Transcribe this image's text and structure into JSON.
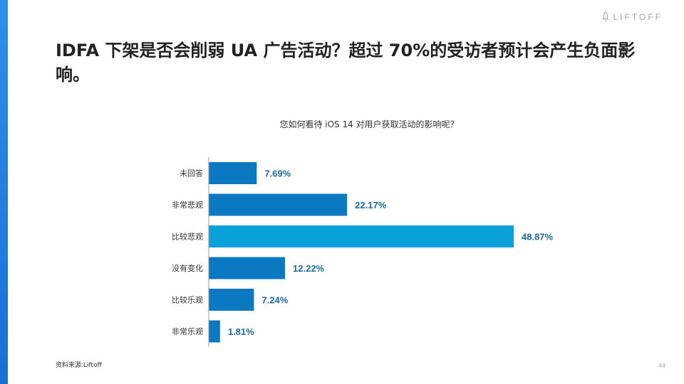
{
  "brand": {
    "logo_text": "LIFTOFF",
    "logo_icon": "rocket-icon",
    "accent": "#1a6fd6"
  },
  "slide": {
    "title": "IDFA 下架是否会削弱 UA 广告活动？超过 70%的受访者预计会产生负面影响。",
    "source": "资料来源:Liftoff",
    "page_number": "44"
  },
  "chart_data": {
    "type": "bar",
    "orientation": "horizontal",
    "title": "您如何看待 iOS 14 对用户获取活动的影响呢？",
    "categories": [
      "未回答",
      "非常悲观",
      "比较悲观",
      "没有变化",
      "比较乐观",
      "非常乐观"
    ],
    "values": [
      7.69,
      22.17,
      48.87,
      12.22,
      7.24,
      1.81
    ],
    "value_labels": [
      "7.69%",
      "22.17%",
      "48.87%",
      "12.22%",
      "7.24%",
      "1.81%"
    ],
    "xlim": [
      0,
      50
    ],
    "grid": false,
    "legend": "none",
    "colors": {
      "bar": "#0b78c2",
      "bar_highlight": "#0aa0d8",
      "label": "#1b6aa3",
      "highlight_index": 2
    }
  }
}
